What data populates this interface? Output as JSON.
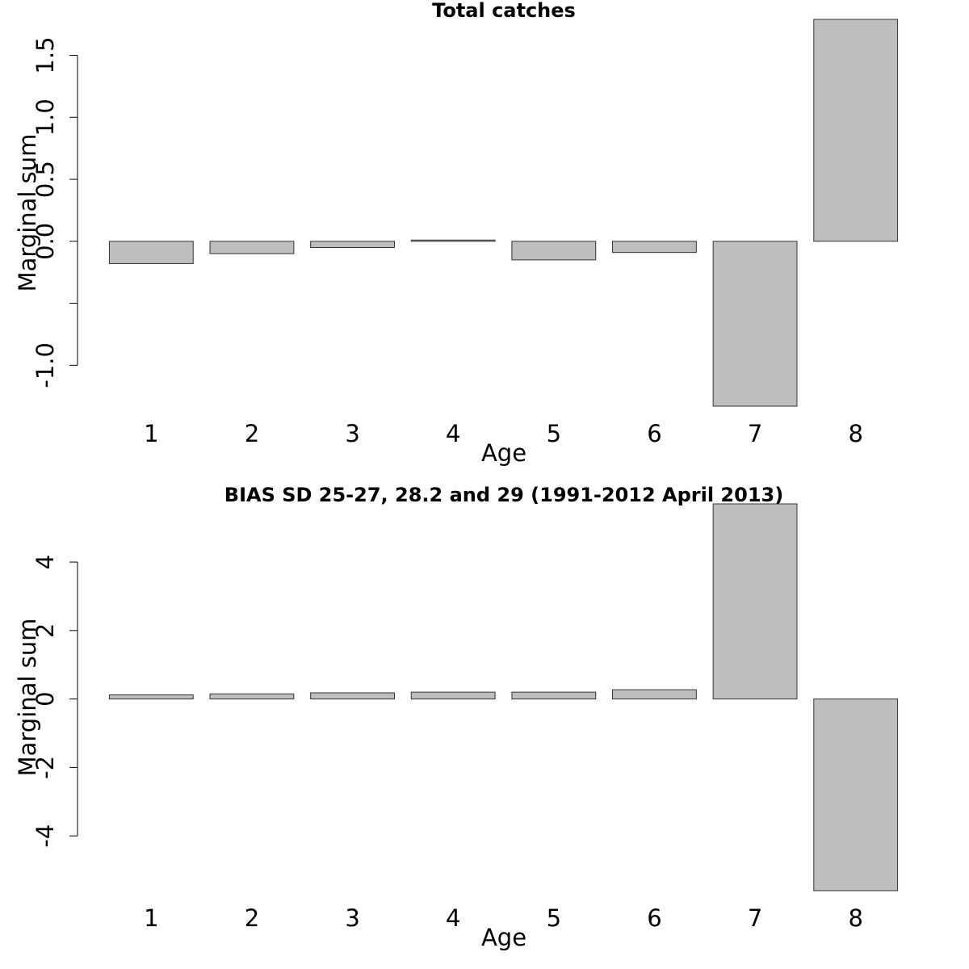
{
  "chart_data": [
    {
      "type": "bar",
      "title": "Total catches",
      "xlabel": "Age",
      "ylabel": "Marginal sum",
      "categories": [
        "1",
        "2",
        "3",
        "4",
        "5",
        "6",
        "7",
        "8"
      ],
      "values": [
        -0.18,
        -0.1,
        -0.05,
        0.01,
        -0.15,
        -0.09,
        -1.33,
        1.79
      ],
      "yticks": [
        -1.0,
        -0.5,
        0.0,
        0.5,
        1.0,
        1.5
      ],
      "ytick_labels": [
        "-1.0",
        "",
        "0.0",
        "0.5",
        "1.0",
        "1.5"
      ],
      "ylim": [
        -1.33,
        1.79
      ],
      "bar_color": "#bebebe",
      "grid": false,
      "legend": "none"
    },
    {
      "type": "bar",
      "title": "BIAS SD 25-27, 28.2 and 29 (1991-2012 April 2013)",
      "xlabel": "Age",
      "ylabel": "Marginal sum",
      "categories": [
        "1",
        "2",
        "3",
        "4",
        "5",
        "6",
        "7",
        "8"
      ],
      "values": [
        0.12,
        0.15,
        0.18,
        0.2,
        0.2,
        0.27,
        5.7,
        -5.6
      ],
      "yticks": [
        -4,
        -2,
        0,
        2,
        4
      ],
      "ytick_labels": [
        "-4",
        "-2",
        "0",
        "2",
        "4"
      ],
      "ylim": [
        -5.6,
        5.7
      ],
      "bar_color": "#bebebe",
      "grid": false,
      "legend": "none"
    }
  ]
}
